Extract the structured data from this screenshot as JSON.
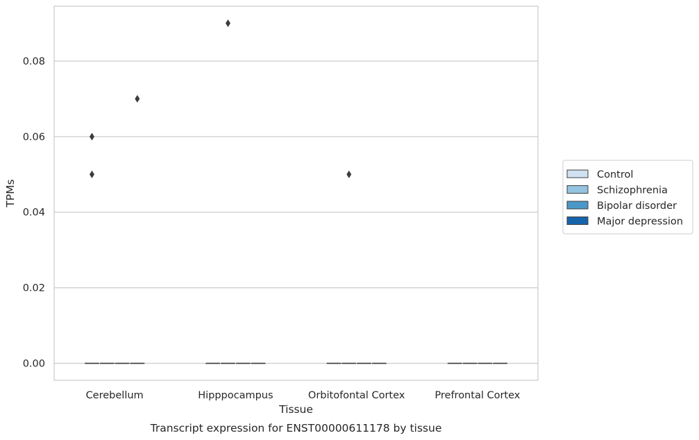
{
  "chart_data": {
    "type": "box",
    "title": "",
    "caption": "Transcript expression for ENST00000611178 by tissue",
    "xlabel": "Tissue",
    "ylabel": "TPMs",
    "categories": [
      "Cerebellum",
      "Hipppocampus",
      "Orbitofontal Cortex",
      "Prefrontal Cortex"
    ],
    "ylim": [
      -0.0045,
      0.0945
    ],
    "yticks": [
      0.0,
      0.02,
      0.04,
      0.06,
      0.08
    ],
    "ytick_labels": [
      "0.00",
      "0.02",
      "0.04",
      "0.06",
      "0.08"
    ],
    "grid": true,
    "legend_placement": "right",
    "series": [
      {
        "name": "Control",
        "color": "#d0e1f2",
        "median": [
          0,
          0,
          0,
          0
        ],
        "q1": [
          0,
          0,
          0,
          0
        ],
        "q3": [
          0,
          0,
          0,
          0
        ],
        "outliers": [
          [
            0.05,
            0.06
          ],
          [],
          [],
          []
        ]
      },
      {
        "name": "Schizophrenia",
        "color": "#94c4df",
        "median": [
          0,
          0,
          0,
          0
        ],
        "q1": [
          0,
          0,
          0,
          0
        ],
        "q3": [
          0,
          0,
          0,
          0
        ],
        "outliers": [
          [],
          [
            0.09
          ],
          [
            0.05
          ],
          []
        ]
      },
      {
        "name": "Bipolar disorder",
        "color": "#4a98c9",
        "median": [
          0,
          0,
          0,
          0
        ],
        "q1": [
          0,
          0,
          0,
          0
        ],
        "q3": [
          0,
          0,
          0,
          0
        ],
        "outliers": [
          [],
          [],
          [],
          []
        ]
      },
      {
        "name": "Major depression",
        "color": "#1764ab",
        "median": [
          0,
          0,
          0,
          0
        ],
        "q1": [
          0,
          0,
          0,
          0
        ],
        "q3": [
          0,
          0,
          0,
          0
        ],
        "outliers": [
          [
            0.07
          ],
          [],
          [],
          []
        ]
      }
    ]
  }
}
